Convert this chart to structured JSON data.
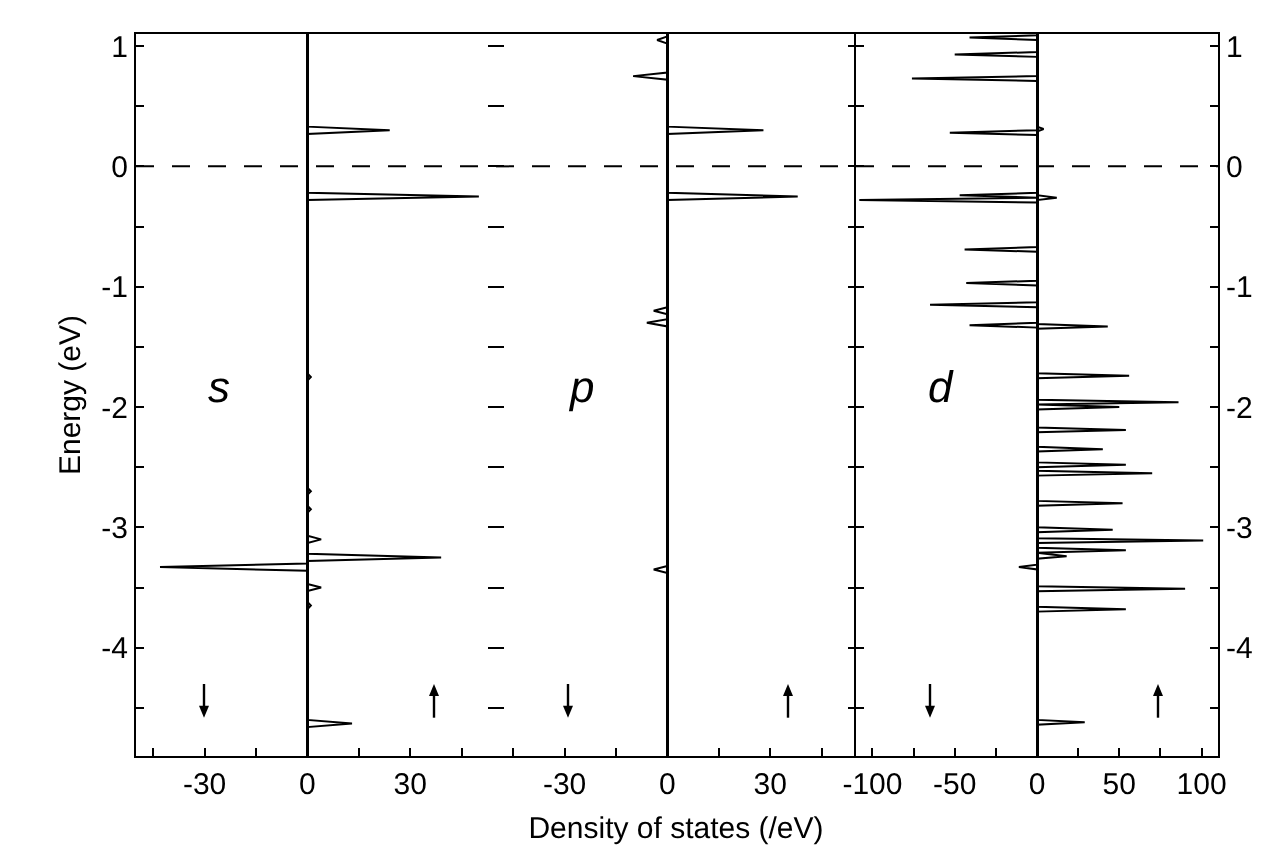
{
  "chart_data": [
    {
      "type": "line",
      "ylabel": "Energy (eV)",
      "annotations": [
        "s"
      ],
      "xlim": [
        -50,
        55
      ],
      "xticks": [
        {
          "value": -45,
          "label": null
        },
        -30,
        {
          "value": -15,
          "label": null
        },
        0,
        {
          "value": 15,
          "label": null
        },
        30,
        {
          "value": 45,
          "label": null
        }
      ],
      "ylim": [
        -4.9,
        1.1
      ],
      "yticks": [
        1,
        {
          "value": 0.5,
          "label": null
        },
        0,
        {
          "value": -0.5,
          "label": null
        },
        -1,
        {
          "value": -1.5,
          "label": null
        },
        -2,
        {
          "value": -2.5,
          "label": null
        },
        -3,
        {
          "value": -3.5,
          "label": null
        },
        -4,
        {
          "value": -4.5,
          "label": null
        }
      ],
      "ref_lines": [
        {
          "axis": "y",
          "value": 0,
          "color": "#000000",
          "line_style": "dashed"
        }
      ],
      "series": [
        {
          "color": "#000000",
          "x": [
            0,
            0,
            -43,
            0,
            0
          ],
          "values": [
            1.1,
            -3.3,
            -3.33,
            -3.36,
            -4.9
          ]
        },
        {
          "color": "#000000",
          "x": [
            0,
            0,
            24,
            0,
            0,
            50,
            0,
            0,
            1,
            0,
            0,
            1,
            0,
            0,
            1,
            0,
            0,
            4,
            0,
            0,
            39,
            0,
            0,
            4,
            0,
            0,
            1,
            0,
            0,
            13,
            0,
            0
          ],
          "values": [
            1.1,
            0.33,
            0.3,
            0.27,
            -0.22,
            -0.25,
            -0.28,
            -1.72,
            -1.75,
            -1.78,
            -2.67,
            -2.7,
            -2.73,
            -2.82,
            -2.85,
            -2.88,
            -3.07,
            -3.1,
            -3.13,
            -3.22,
            -3.25,
            -3.28,
            -3.47,
            -3.5,
            -3.53,
            -3.62,
            -3.65,
            -3.68,
            -4.6,
            -4.63,
            -4.66,
            -4.9
          ]
        }
      ]
    },
    {
      "type": "line",
      "xlabel": "Density of states (/eV)",
      "annotations": [
        "p"
      ],
      "tick_labels": "x",
      "xlim": [
        -50,
        55
      ],
      "xticks": [
        {
          "value": -45,
          "label": null
        },
        -30,
        {
          "value": -15,
          "label": null
        },
        0,
        {
          "value": 15,
          "label": null
        },
        30,
        {
          "value": 45,
          "label": null
        }
      ],
      "ylim": [
        -4.9,
        1.1
      ],
      "yticks": [
        1,
        {
          "value": 0.5,
          "label": null
        },
        0,
        {
          "value": -0.5,
          "label": null
        },
        -1,
        {
          "value": -1.5,
          "label": null
        },
        -2,
        {
          "value": -2.5,
          "label": null
        },
        -3,
        {
          "value": -3.5,
          "label": null
        },
        -4,
        {
          "value": -4.5,
          "label": null
        }
      ],
      "ref_lines": [
        {
          "axis": "y",
          "value": 0,
          "color": "#000000",
          "line_style": "dashed"
        }
      ],
      "series": [
        {
          "color": "#000000",
          "x": [
            0,
            0,
            -3,
            0,
            0,
            -10,
            0,
            0,
            -4,
            0,
            0,
            -6,
            0,
            0,
            -4,
            0,
            0
          ],
          "values": [
            1.1,
            1.08,
            1.05,
            1.02,
            0.78,
            0.75,
            0.72,
            -1.17,
            -1.2,
            -1.23,
            -1.27,
            -1.3,
            -1.33,
            -3.32,
            -3.35,
            -3.38,
            -4.9
          ]
        },
        {
          "color": "#000000",
          "x": [
            0,
            0,
            28,
            0,
            0,
            38,
            0,
            0
          ],
          "values": [
            1.1,
            0.33,
            0.3,
            0.27,
            -0.22,
            -0.25,
            -0.28,
            -4.9
          ]
        }
      ]
    },
    {
      "type": "line",
      "annotations": [
        "d"
      ],
      "xlim": [
        -110,
        110
      ],
      "xticks": [
        -100,
        {
          "value": -75,
          "label": null
        },
        -50,
        {
          "value": -25,
          "label": null
        },
        0,
        {
          "value": 25,
          "label": null
        },
        50,
        {
          "value": 75,
          "label": null
        },
        100
      ],
      "y2lim": [
        -4.9,
        1.1
      ],
      "y2ticks": [
        1,
        {
          "value": 0.5,
          "label": null
        },
        0,
        {
          "value": -0.5,
          "label": null
        },
        -1,
        {
          "value": -1.5,
          "label": null
        },
        -2,
        {
          "value": -2.5,
          "label": null
        },
        -3,
        {
          "value": -3.5,
          "label": null
        },
        -4,
        {
          "value": -4.5,
          "label": null
        }
      ],
      "ref_lines": [
        {
          "axis": "y2",
          "value": 0,
          "color": "#000000",
          "line_style": "dashed"
        }
      ],
      "series": [
        {
          "color": "#000000",
          "axis": "y2",
          "x": [
            0,
            0,
            -41,
            0,
            0,
            -50,
            0,
            0,
            -76,
            0,
            0,
            -53,
            0,
            0,
            -47,
            0,
            -108,
            0,
            0,
            -44,
            0,
            0,
            -43,
            0,
            0,
            -65,
            0,
            0,
            -41,
            0,
            0,
            -11,
            0,
            0
          ],
          "values": [
            1.1,
            1.09,
            1.07,
            1.05,
            0.95,
            0.93,
            0.91,
            0.75,
            0.73,
            0.71,
            0.3,
            0.28,
            0.26,
            -0.22,
            -0.24,
            -0.26,
            -0.28,
            -0.3,
            -0.67,
            -0.69,
            -0.71,
            -0.95,
            -0.97,
            -0.99,
            -1.13,
            -1.15,
            -1.17,
            -1.3,
            -1.32,
            -1.34,
            -3.31,
            -3.33,
            -3.35,
            -4.9
          ]
        },
        {
          "color": "#000000",
          "axis": "y2",
          "x": [
            0,
            0,
            4,
            0,
            0,
            12,
            0,
            0,
            43,
            0,
            0,
            56,
            0,
            0,
            86,
            0,
            50,
            0,
            0,
            54,
            0,
            0,
            40,
            0,
            0,
            54,
            0,
            0,
            70,
            0,
            0,
            52,
            0,
            0,
            46,
            0,
            0,
            101,
            0,
            0,
            54,
            0,
            18,
            0,
            0,
            90,
            0,
            0,
            54,
            0,
            0,
            29,
            0,
            0
          ],
          "values": [
            1.1,
            0.33,
            0.31,
            0.29,
            -0.24,
            -0.26,
            -0.28,
            -1.31,
            -1.33,
            -1.35,
            -1.72,
            -1.74,
            -1.76,
            -1.94,
            -1.96,
            -1.98,
            -2.0,
            -2.02,
            -2.17,
            -2.19,
            -2.21,
            -2.33,
            -2.35,
            -2.37,
            -2.46,
            -2.48,
            -2.5,
            -2.53,
            -2.55,
            -2.57,
            -2.78,
            -2.8,
            -2.82,
            -3.0,
            -3.02,
            -3.04,
            -3.09,
            -3.11,
            -3.13,
            -3.17,
            -3.19,
            -3.21,
            -3.24,
            -3.26,
            -3.49,
            -3.51,
            -3.53,
            -3.66,
            -3.68,
            -3.7,
            -4.6,
            -4.62,
            -4.64,
            -4.9
          ]
        }
      ]
    }
  ]
}
